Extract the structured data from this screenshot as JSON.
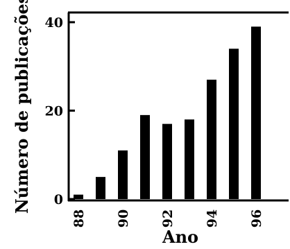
{
  "chart_data": {
    "type": "bar",
    "title": "",
    "xlabel": "Ano",
    "ylabel": "Número de publicações",
    "categories": [
      "88",
      "89",
      "90",
      "91",
      "92",
      "93",
      "94",
      "95",
      "96"
    ],
    "x_tick_labels": [
      "88",
      "90",
      "92",
      "94",
      "96"
    ],
    "values": [
      1,
      5,
      11,
      19,
      17,
      18,
      27,
      34,
      39
    ],
    "y_ticks": [
      "0",
      "20",
      "40"
    ],
    "ylim": [
      0,
      40
    ],
    "grid": false,
    "bar_color": "#000000"
  }
}
